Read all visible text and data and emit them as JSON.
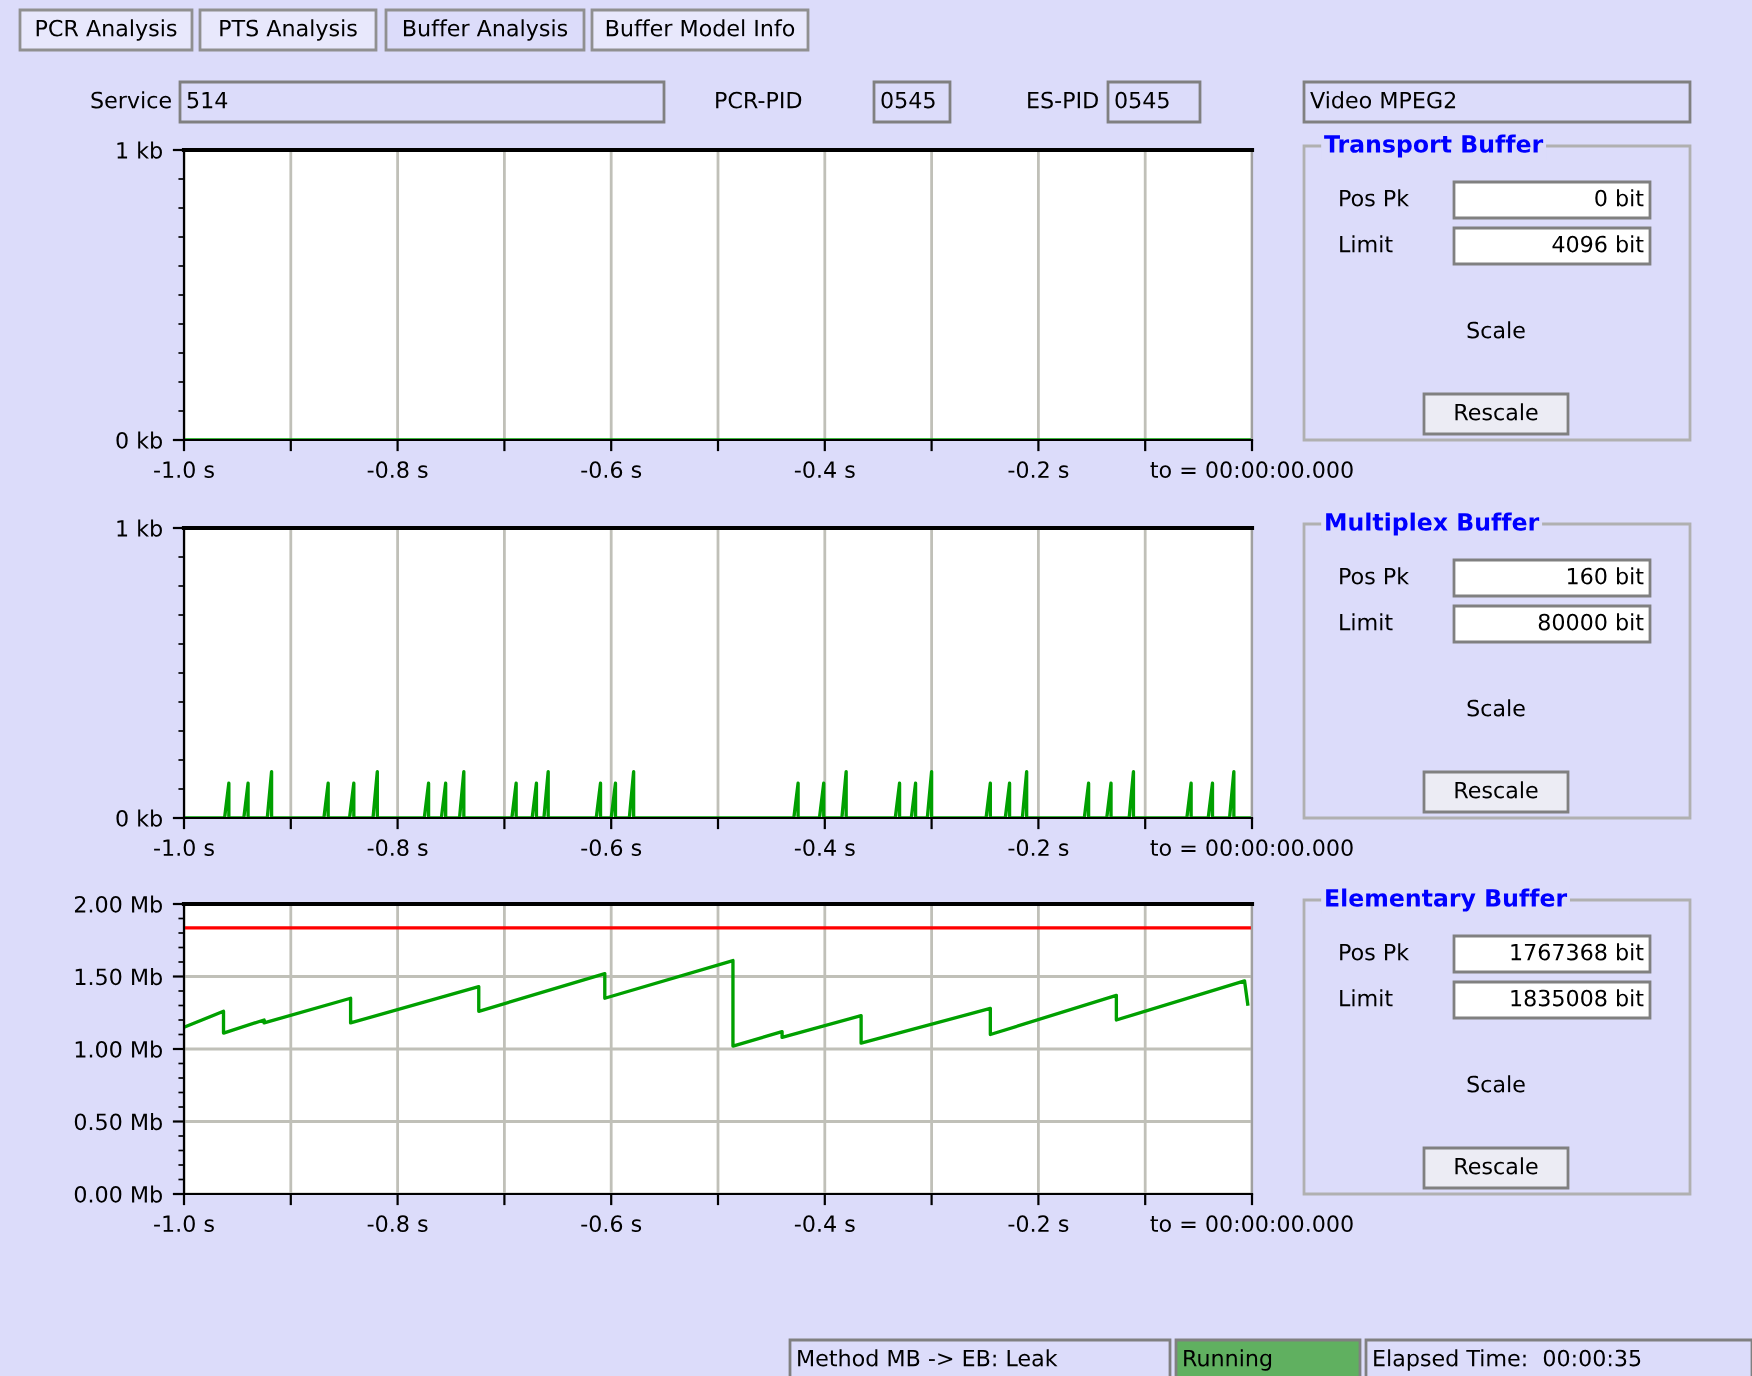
{
  "chart_data": [
    {
      "type": "other",
      "annotations": [
        "PCR Analysis",
        "PTS Analysis",
        "Buffer Analysis",
        "Buffer Model Info",
        "Service",
        "514",
        "PCR-PID",
        "0545",
        "ES-PID",
        "0545",
        "Video MPEG2",
        "Method MB -> EB: Leak",
        "Running",
        "Elapsed Time:  00:00:35"
      ]
    },
    {
      "type": "line",
      "title": "Transport Buffer",
      "annotations": [
        "Pos Pk",
        "0 bit",
        "Limit",
        "4096 bit",
        "Scale",
        "Rescale"
      ],
      "xlim": [
        -1.0,
        0
      ],
      "xticks": [
        {
          "value": -1.0,
          "label": "-1.0 s"
        },
        {
          "value": -0.9,
          "label": null
        },
        {
          "value": -0.8,
          "label": "-0.8 s"
        },
        {
          "value": -0.7,
          "label": null
        },
        {
          "value": -0.6,
          "label": "-0.6 s"
        },
        {
          "value": -0.5,
          "label": null
        },
        {
          "value": -0.4,
          "label": "-0.4 s"
        },
        {
          "value": -0.3,
          "label": null
        },
        {
          "value": -0.2,
          "label": "-0.2 s"
        },
        {
          "value": -0.1,
          "label": null
        },
        {
          "value": 0,
          "label": "to = 00:00:00.000"
        }
      ],
      "ylim": [
        0,
        1
      ],
      "yticks": [
        {
          "value": 0,
          "label": "0 kb"
        },
        {
          "value": 0.1,
          "label": null
        },
        {
          "value": 0.2,
          "label": null
        },
        {
          "value": 0.3,
          "label": null
        },
        {
          "value": 0.4,
          "label": null
        },
        {
          "value": 0.5,
          "label": null
        },
        {
          "value": 0.6,
          "label": null
        },
        {
          "value": 0.7,
          "label": null
        },
        {
          "value": 0.8,
          "label": null
        },
        {
          "value": 0.9,
          "label": null
        },
        {
          "value": 1,
          "label": "1 kb"
        }
      ],
      "grid": "x",
      "marker": "none",
      "legend": false,
      "series": [
        {
          "color": "#00a000",
          "x": [
            -1.0,
            0
          ],
          "values": [
            0,
            0
          ]
        }
      ]
    },
    {
      "type": "line",
      "title": "Multiplex Buffer",
      "annotations": [
        "Pos Pk",
        "160 bit",
        "Limit",
        "80000 bit",
        "Scale",
        "Rescale"
      ],
      "xlim": [
        -1.0,
        0
      ],
      "xticks": [
        {
          "value": -1.0,
          "label": "-1.0 s"
        },
        {
          "value": -0.9,
          "label": null
        },
        {
          "value": -0.8,
          "label": "-0.8 s"
        },
        {
          "value": -0.7,
          "label": null
        },
        {
          "value": -0.6,
          "label": "-0.6 s"
        },
        {
          "value": -0.5,
          "label": null
        },
        {
          "value": -0.4,
          "label": "-0.4 s"
        },
        {
          "value": -0.3,
          "label": null
        },
        {
          "value": -0.2,
          "label": "-0.2 s"
        },
        {
          "value": -0.1,
          "label": null
        },
        {
          "value": 0,
          "label": "to = 00:00:00.000"
        }
      ],
      "ylim": [
        0,
        1
      ],
      "yticks": [
        {
          "value": 0,
          "label": "0 kb"
        },
        {
          "value": 0.1,
          "label": null
        },
        {
          "value": 0.2,
          "label": null
        },
        {
          "value": 0.3,
          "label": null
        },
        {
          "value": 0.4,
          "label": null
        },
        {
          "value": 0.5,
          "label": null
        },
        {
          "value": 0.6,
          "label": null
        },
        {
          "value": 0.7,
          "label": null
        },
        {
          "value": 0.8,
          "label": null
        },
        {
          "value": 0.9,
          "label": null
        },
        {
          "value": 1,
          "label": "1 kb"
        }
      ],
      "grid": "x",
      "marker": "none",
      "legend": false,
      "series": [
        {
          "color": "#00a000",
          "x": [
            -1.0,
            -0.962,
            -0.958,
            -0.958,
            -0.944,
            -0.94,
            -0.94,
            -0.922,
            -0.918,
            -0.918,
            -0.869,
            -0.865,
            -0.865,
            -0.845,
            -0.841,
            -0.841,
            -0.823,
            -0.819,
            -0.819,
            -0.775,
            -0.771,
            -0.771,
            -0.759,
            -0.755,
            -0.755,
            -0.742,
            -0.738,
            -0.738,
            -0.693,
            -0.689,
            -0.689,
            -0.674,
            -0.67,
            -0.67,
            -0.663,
            -0.659,
            -0.659,
            -0.614,
            -0.61,
            -0.61,
            -0.6,
            -0.596,
            -0.596,
            -0.583,
            -0.579,
            -0.579,
            -0.429,
            -0.425,
            -0.425,
            -0.405,
            -0.401,
            -0.401,
            -0.384,
            -0.38,
            -0.38,
            -0.334,
            -0.33,
            -0.33,
            -0.319,
            -0.315,
            -0.315,
            -0.304,
            -0.3,
            -0.3,
            -0.249,
            -0.245,
            -0.245,
            -0.231,
            -0.227,
            -0.227,
            -0.215,
            -0.211,
            -0.211,
            -0.157,
            -0.153,
            -0.153,
            -0.136,
            -0.132,
            -0.132,
            -0.115,
            -0.111,
            -0.111,
            -0.061,
            -0.057,
            -0.057,
            -0.041,
            -0.037,
            -0.037,
            -0.021,
            -0.017,
            -0.017,
            0
          ],
          "values": [
            0,
            0,
            0.12,
            0,
            0,
            0.12,
            0,
            0,
            0.16,
            0,
            0,
            0.12,
            0,
            0,
            0.12,
            0,
            0,
            0.16,
            0,
            0,
            0.12,
            0,
            0,
            0.12,
            0,
            0,
            0.16,
            0,
            0,
            0.12,
            0,
            0,
            0.12,
            0,
            0,
            0.16,
            0,
            0,
            0.12,
            0,
            0,
            0.12,
            0,
            0,
            0.16,
            0,
            0,
            0.12,
            0,
            0,
            0.12,
            0,
            0,
            0.16,
            0,
            0,
            0.12,
            0,
            0,
            0.12,
            0,
            0,
            0.16,
            0,
            0,
            0.12,
            0,
            0,
            0.12,
            0,
            0,
            0.16,
            0,
            0,
            0.12,
            0,
            0,
            0.12,
            0,
            0,
            0.16,
            0,
            0,
            0.12,
            0,
            0,
            0.12,
            0,
            0,
            0.16,
            0,
            0
          ]
        }
      ]
    },
    {
      "type": "line",
      "title": "Elementary Buffer",
      "annotations": [
        "Pos Pk",
        "1767368 bit",
        "Limit",
        "1835008 bit",
        "Scale",
        "Rescale"
      ],
      "xlim": [
        -1.0,
        0
      ],
      "xticks": [
        {
          "value": -1.0,
          "label": "-1.0 s"
        },
        {
          "value": -0.9,
          "label": null
        },
        {
          "value": -0.8,
          "label": "-0.8 s"
        },
        {
          "value": -0.7,
          "label": null
        },
        {
          "value": -0.6,
          "label": "-0.6 s"
        },
        {
          "value": -0.5,
          "label": null
        },
        {
          "value": -0.4,
          "label": "-0.4 s"
        },
        {
          "value": -0.3,
          "label": null
        },
        {
          "value": -0.2,
          "label": "-0.2 s"
        },
        {
          "value": -0.1,
          "label": null
        },
        {
          "value": 0,
          "label": "to = 00:00:00.000"
        }
      ],
      "ylim": [
        0,
        2
      ],
      "yticks": [
        {
          "value": 0,
          "label": "0.00 Mb"
        },
        {
          "value": 0.1,
          "label": null
        },
        {
          "value": 0.2,
          "label": null
        },
        {
          "value": 0.3,
          "label": null
        },
        {
          "value": 0.4,
          "label": null
        },
        {
          "value": 0.5,
          "label": "0.50 Mb"
        },
        {
          "value": 0.6,
          "label": null
        },
        {
          "value": 0.7,
          "label": null
        },
        {
          "value": 0.8,
          "label": null
        },
        {
          "value": 0.9,
          "label": null
        },
        {
          "value": 1.0,
          "label": "1.00 Mb"
        },
        {
          "value": 1.1,
          "label": null
        },
        {
          "value": 1.2,
          "label": null
        },
        {
          "value": 1.3,
          "label": null
        },
        {
          "value": 1.4,
          "label": null
        },
        {
          "value": 1.5,
          "label": "1.50 Mb"
        },
        {
          "value": 1.6,
          "label": null
        },
        {
          "value": 1.7,
          "label": null
        },
        {
          "value": 1.8,
          "label": null
        },
        {
          "value": 1.9,
          "label": null
        },
        {
          "value": 2.0,
          "label": "2.00 Mb"
        }
      ],
      "grid": true,
      "marker": "none",
      "legend": false,
      "ref_lines": [
        {
          "axis": "y",
          "value": 1.835,
          "color": "#ff0000"
        }
      ],
      "series": [
        {
          "color": "#00a000",
          "x": [
            -1.0,
            -0.963,
            -0.963,
            -0.925,
            -0.925,
            -0.844,
            -0.844,
            -0.724,
            -0.724,
            -0.606,
            -0.606,
            -0.486,
            -0.486,
            -0.44,
            -0.44,
            -0.366,
            -0.366,
            -0.245,
            -0.245,
            -0.127,
            -0.127,
            -0.007,
            -0.004
          ],
          "values": [
            1.15,
            1.26,
            1.11,
            1.2,
            1.18,
            1.35,
            1.18,
            1.43,
            1.26,
            1.52,
            1.35,
            1.61,
            1.02,
            1.12,
            1.08,
            1.23,
            1.04,
            1.28,
            1.1,
            1.37,
            1.2,
            1.47,
            1.31
          ]
        }
      ]
    }
  ]
}
